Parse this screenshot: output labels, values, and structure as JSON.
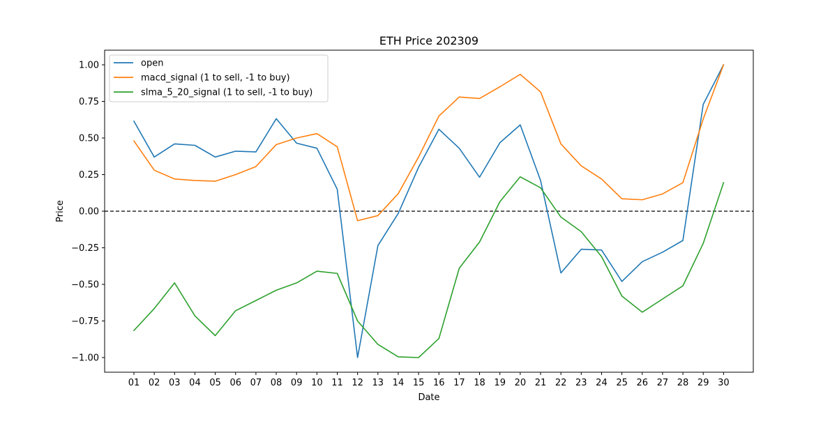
{
  "chart_data": {
    "type": "line",
    "title": "ETH Price 202309",
    "xlabel": "Date",
    "ylabel": "Price",
    "categories": [
      "01",
      "02",
      "03",
      "04",
      "05",
      "06",
      "07",
      "08",
      "09",
      "10",
      "11",
      "12",
      "13",
      "14",
      "15",
      "16",
      "17",
      "18",
      "19",
      "20",
      "21",
      "22",
      "23",
      "24",
      "25",
      "26",
      "27",
      "28",
      "29",
      "30"
    ],
    "ylim": [
      -1.1,
      1.1
    ],
    "yticks": [
      -1.0,
      -0.75,
      -0.5,
      -0.25,
      0.0,
      0.25,
      0.5,
      0.75,
      1.0
    ],
    "ytick_labels": [
      "−1.00",
      "−0.75",
      "−0.50",
      "−0.25",
      "0.00",
      "0.25",
      "0.50",
      "0.75",
      "1.00"
    ],
    "grid": false,
    "legend_position": "top-left",
    "reference_line": {
      "y": 0.0,
      "style": "dashed",
      "color": "#000000"
    },
    "series": [
      {
        "name": "open",
        "color": "#1f77b4",
        "values": [
          0.615,
          0.37,
          0.46,
          0.45,
          0.37,
          0.41,
          0.405,
          0.632,
          0.465,
          0.43,
          0.15,
          -1.0,
          -0.235,
          -0.015,
          0.3,
          0.56,
          0.43,
          0.232,
          0.468,
          0.59,
          0.21,
          -0.422,
          -0.26,
          -0.265,
          -0.48,
          -0.345,
          -0.28,
          -0.2,
          0.73,
          1.0
        ]
      },
      {
        "name": "macd_signal (1 to sell, -1 to buy)",
        "color": "#ff7f0e",
        "values": [
          0.48,
          0.28,
          0.22,
          0.21,
          0.205,
          0.25,
          0.305,
          0.455,
          0.5,
          0.53,
          0.44,
          -0.065,
          -0.03,
          0.12,
          0.37,
          0.65,
          0.78,
          0.77,
          0.85,
          0.935,
          0.815,
          0.46,
          0.31,
          0.22,
          0.085,
          0.078,
          0.118,
          0.195,
          0.63,
          1.0
        ]
      },
      {
        "name": "slma_5_20_signal (1 to sell, -1 to buy)",
        "color": "#2ca02c",
        "values": [
          -0.815,
          -0.665,
          -0.49,
          -0.715,
          -0.85,
          -0.68,
          -0.61,
          -0.54,
          -0.49,
          -0.41,
          -0.425,
          -0.75,
          -0.91,
          -0.995,
          -1.0,
          -0.87,
          -0.39,
          -0.21,
          0.065,
          0.235,
          0.16,
          -0.04,
          -0.14,
          -0.31,
          -0.58,
          -0.69,
          -0.6,
          -0.51,
          -0.22,
          0.195
        ]
      }
    ]
  }
}
